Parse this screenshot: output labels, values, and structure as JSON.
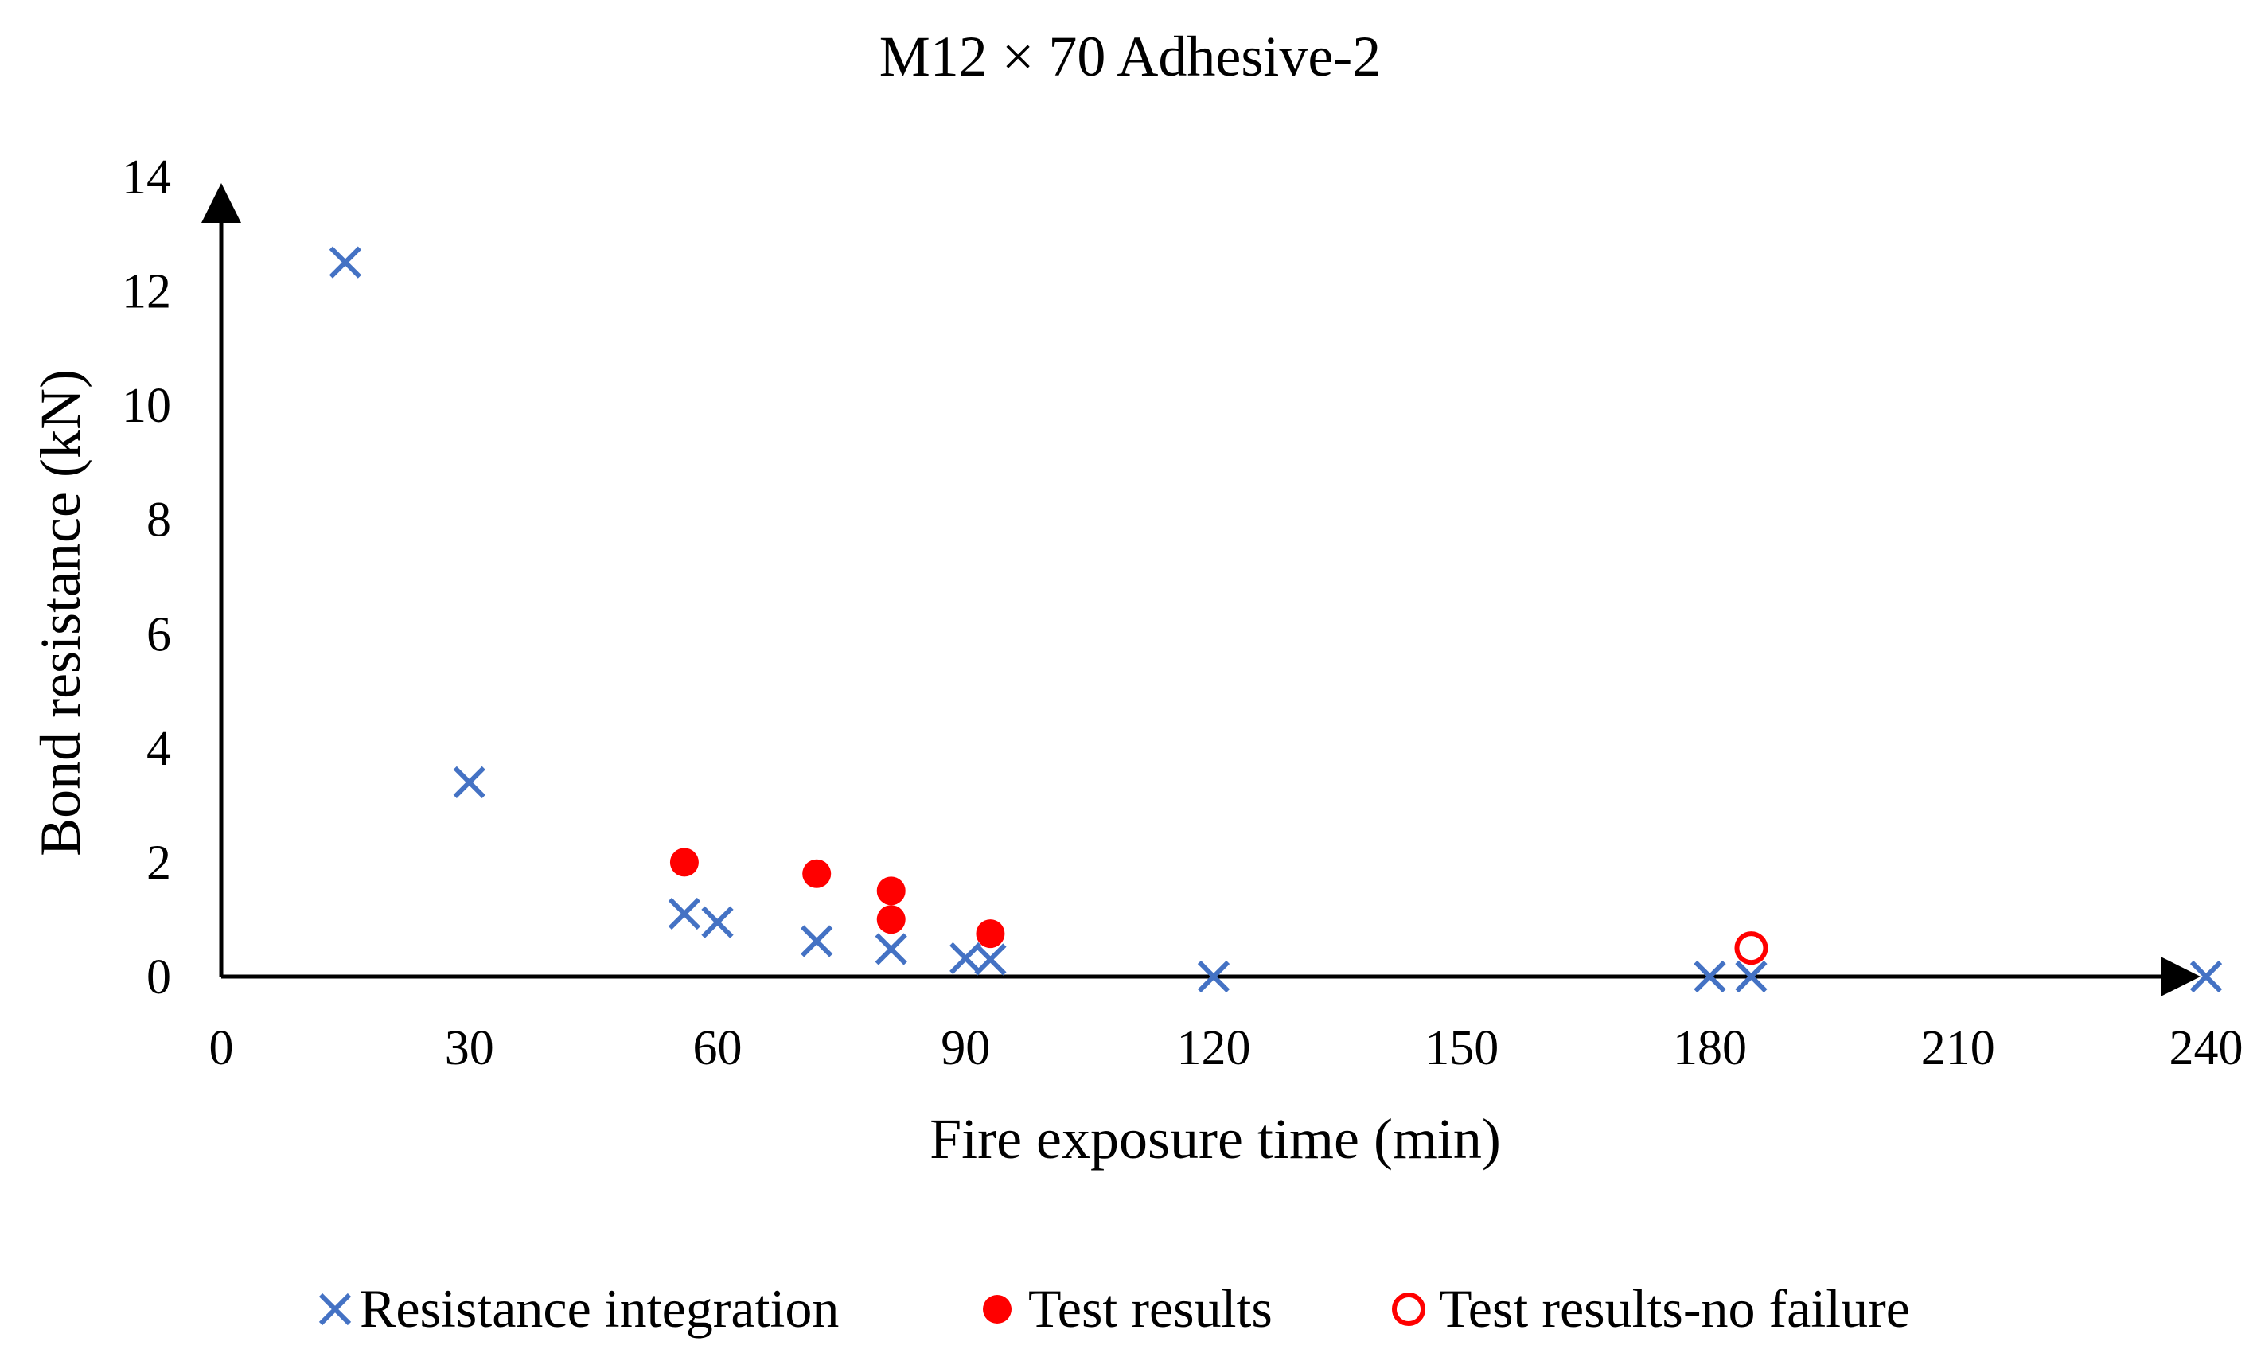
{
  "chart_data": {
    "type": "scatter",
    "title": "M12 × 70 Adhesive-2",
    "xlabel": "Fire exposure time (min)",
    "ylabel": "Bond resistance (kN)",
    "xlim": [
      0,
      240
    ],
    "ylim": [
      0,
      14
    ],
    "xticks": [
      0,
      30,
      60,
      90,
      120,
      150,
      180,
      210,
      240
    ],
    "yticks": [
      0,
      2,
      4,
      6,
      8,
      10,
      12,
      14
    ],
    "grid": false,
    "legend_position": "bottom",
    "colors": {
      "resistance": "#4472C4",
      "test": "#FF0000",
      "axis": "#000000"
    },
    "series": [
      {
        "name": "Resistance integration",
        "marker": "x",
        "color": "#4472C4",
        "points": [
          {
            "x": 15,
            "y": 12.5
          },
          {
            "x": 30,
            "y": 3.4
          },
          {
            "x": 56,
            "y": 1.1
          },
          {
            "x": 60,
            "y": 0.95
          },
          {
            "x": 72,
            "y": 0.62
          },
          {
            "x": 81,
            "y": 0.48
          },
          {
            "x": 90,
            "y": 0.32
          },
          {
            "x": 93,
            "y": 0.3
          },
          {
            "x": 120,
            "y": 0
          },
          {
            "x": 180,
            "y": 0
          },
          {
            "x": 185,
            "y": 0
          },
          {
            "x": 240,
            "y": 0
          }
        ]
      },
      {
        "name": "Test results",
        "marker": "filled-circle",
        "color": "#FF0000",
        "points": [
          {
            "x": 56,
            "y": 2.0
          },
          {
            "x": 72,
            "y": 1.8
          },
          {
            "x": 81,
            "y": 1.5
          },
          {
            "x": 81,
            "y": 1.0
          },
          {
            "x": 93,
            "y": 0.75
          }
        ]
      },
      {
        "name": "Test results-no failure",
        "marker": "open-circle",
        "color": "#FF0000",
        "points": [
          {
            "x": 185,
            "y": 0.5
          }
        ]
      }
    ]
  }
}
